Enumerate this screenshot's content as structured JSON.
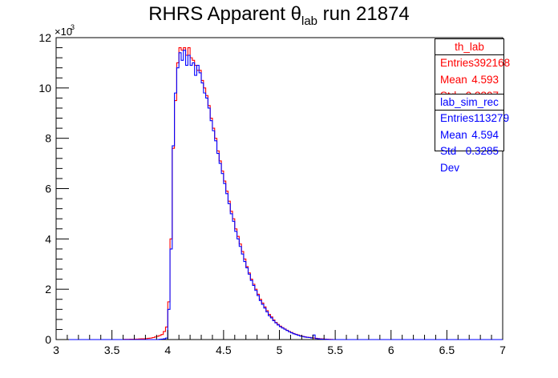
{
  "chart_data": {
    "type": "histogram",
    "title_main": "RHRS Apparent ",
    "title_symbol": "θ",
    "title_sub": "lab",
    "title_rest": " run 21874",
    "xlabel": "",
    "ylabel": "",
    "xlim": [
      3,
      7
    ],
    "ylim": [
      0,
      12000
    ],
    "y_multiplier_label": "×10",
    "y_multiplier_exp": "3",
    "xticks": [
      "3",
      "3.5",
      "4",
      "4.5",
      "5",
      "5.5",
      "6",
      "6.5",
      "7"
    ],
    "yticks": [
      "0",
      "2",
      "4",
      "6",
      "8",
      "10",
      "12"
    ],
    "series": [
      {
        "name": "th_lab",
        "color": "#ff0000",
        "stats": {
          "entries_label": "Entries",
          "entries": "392168",
          "mean_label": "Mean",
          "mean": "4.593",
          "std_label": "Std Dev",
          "std": "0.3307"
        },
        "bin_width": 0.02,
        "x_start": 3.6,
        "values": [
          10,
          10,
          10,
          15,
          15,
          20,
          20,
          25,
          30,
          30,
          40,
          50,
          60,
          80,
          100,
          130,
          160,
          200,
          320,
          500,
          1500,
          4000,
          7600,
          9500,
          11000,
          11600,
          11500,
          11600,
          11300,
          11600,
          11200,
          11100,
          10900,
          10700,
          10700,
          10300,
          10000,
          9700,
          9300,
          8800,
          8400,
          8000,
          7500,
          7100,
          6700,
          6300,
          5900,
          5500,
          5100,
          4800,
          4400,
          4100,
          3800,
          3500,
          3200,
          2900,
          2650,
          2400,
          2200,
          2000,
          1800,
          1600,
          1450,
          1300,
          1150,
          1000,
          900,
          780,
          680,
          600,
          530,
          470,
          420,
          370,
          320,
          280,
          240,
          210,
          180,
          150,
          130,
          110,
          95,
          85,
          70,
          60,
          50,
          40,
          30,
          25,
          20,
          15,
          10,
          5,
          0
        ]
      },
      {
        "name": "lab_sim_rec",
        "color": "#0000ff",
        "stats": {
          "entries_label": "Entries",
          "entries": "113279",
          "mean_label": "Mean",
          "mean": "4.594",
          "std_label": "Std Dev",
          "std": "0.3285"
        },
        "bin_width": 0.02,
        "x_start": 3.6,
        "values": [
          0,
          0,
          0,
          0,
          0,
          0,
          0,
          0,
          0,
          0,
          0,
          0,
          0,
          0,
          0,
          0,
          10,
          20,
          30,
          60,
          1200,
          3600,
          7700,
          9800,
          10800,
          11400,
          11100,
          11500,
          10900,
          11300,
          10900,
          11000,
          10500,
          10900,
          10600,
          10200,
          9800,
          9600,
          9200,
          8700,
          8300,
          7900,
          7400,
          7000,
          6600,
          6200,
          5800,
          5400,
          5000,
          4700,
          4300,
          4000,
          3700,
          3400,
          3100,
          2850,
          2600,
          2350,
          2150,
          1950,
          1750,
          1550,
          1400,
          1250,
          1100,
          950,
          860,
          750,
          660,
          580,
          510,
          460,
          410,
          360,
          310,
          270,
          230,
          200,
          170,
          140,
          120,
          100,
          90,
          80,
          65,
          180,
          40,
          30,
          20,
          15,
          10,
          5,
          0,
          0,
          0
        ]
      }
    ],
    "grid": false
  }
}
